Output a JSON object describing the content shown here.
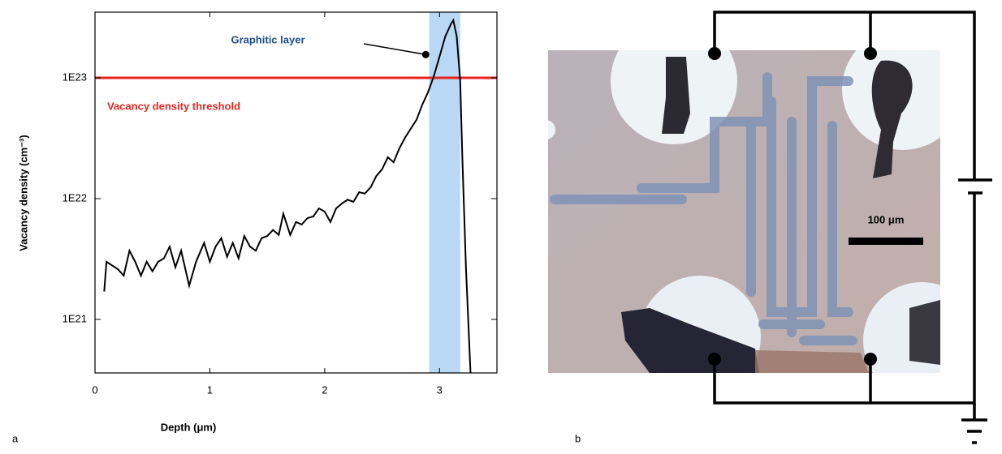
{
  "chart_data": {
    "type": "line",
    "x_label": "Depth (μm)",
    "y_label": "Vacancy density (cm⁻³)",
    "xlim": [
      0,
      3.5
    ],
    "xticks": [
      0,
      1,
      2,
      3
    ],
    "ylim": [
      3.6e+20,
      3.5e+23
    ],
    "log_y": true,
    "yticks": [
      {
        "value": 1e+21,
        "label": "1E21"
      },
      {
        "value": 1e+22,
        "label": "1E22"
      },
      {
        "value": 1e+23,
        "label": "1E23"
      }
    ],
    "series": [
      {
        "color": "#000000",
        "x": [
          0.08,
          0.1,
          0.2,
          0.25,
          0.3,
          0.35,
          0.4,
          0.45,
          0.5,
          0.55,
          0.6,
          0.65,
          0.7,
          0.75,
          0.82,
          0.88,
          0.95,
          1.0,
          1.05,
          1.1,
          1.15,
          1.2,
          1.25,
          1.3,
          1.35,
          1.4,
          1.45,
          1.5,
          1.55,
          1.6,
          1.64,
          1.7,
          1.75,
          1.8,
          1.85,
          1.9,
          1.95,
          2.0,
          2.05,
          2.1,
          2.15,
          2.2,
          2.25,
          2.3,
          2.35,
          2.4,
          2.45,
          2.5,
          2.55,
          2.6,
          2.65,
          2.7,
          2.75,
          2.8,
          2.85,
          2.9,
          2.95,
          3.0,
          3.05,
          3.1,
          3.12,
          3.15,
          3.18,
          3.2,
          3.23,
          3.27
        ],
        "values": [
          1.7e+21,
          3e+21,
          2.6e+21,
          2.3e+21,
          3.7e+21,
          3e+21,
          2.3e+21,
          3e+21,
          2.5e+21,
          3e+21,
          3.2e+21,
          4e+21,
          2.7e+21,
          3.7e+21,
          1.9e+21,
          3e+21,
          4.3e+21,
          3e+21,
          4e+21,
          4.7e+21,
          3.3e+21,
          4.3e+21,
          3.2e+21,
          4.9e+21,
          4e+21,
          3.7e+21,
          4.7e+21,
          4.9e+21,
          5.5e+21,
          5e+21,
          7.5e+21,
          5e+21,
          6.4e+21,
          6.1e+21,
          6.9e+21,
          7.1e+21,
          8.3e+21,
          7.8e+21,
          6.4e+21,
          8.3e+21,
          9.1e+21,
          9.8e+21,
          9.4e+21,
          1.13e+22,
          1.1e+22,
          1.24e+22,
          1.54e+22,
          1.75e+22,
          2.2e+22,
          2e+22,
          2.6e+22,
          3.2e+22,
          3.8e+22,
          4.5e+22,
          6e+22,
          7.6e+22,
          1.03e+23,
          1.5e+23,
          2.2e+23,
          2.8e+23,
          3e+23,
          2.2e+23,
          9.5e+22,
          2e+22,
          2.7e+21,
          3.6e+20
        ]
      }
    ],
    "threshold": {
      "value": 1e+23,
      "label": "Vacancy density threshold",
      "color": "#e8231f"
    },
    "highlight": {
      "x": [
        2.91,
        3.18
      ],
      "color": "#b9d8f5"
    },
    "annotation": {
      "text": "Graphitic layer",
      "x": 2.88,
      "y": 1.56e+23,
      "color": "#1f4e8c"
    }
  },
  "panel_b": {
    "scale_bar": "100 μm"
  },
  "panel_labels": [
    "a",
    "b"
  ]
}
